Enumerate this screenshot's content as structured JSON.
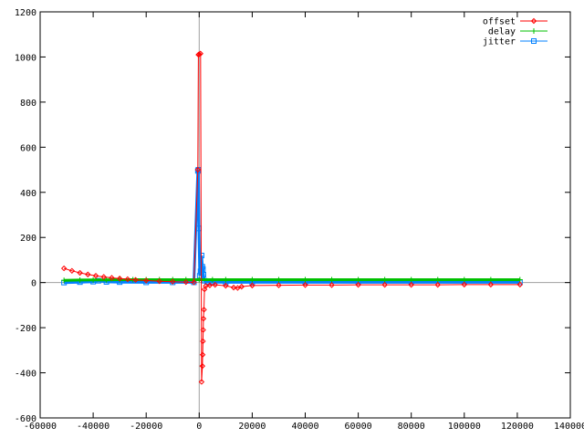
{
  "chart_data": {
    "type": "line",
    "title": "",
    "xlabel": "",
    "ylabel": "",
    "xlim": [
      -60000,
      140000
    ],
    "ylim": [
      -600,
      1200
    ],
    "x_ticks": [
      -60000,
      -40000,
      -20000,
      0,
      20000,
      40000,
      60000,
      80000,
      100000,
      120000,
      140000
    ],
    "y_ticks": [
      -600,
      -400,
      -200,
      0,
      200,
      400,
      600,
      800,
      1000,
      1200
    ],
    "x_tick_labels": [
      "-60000",
      "-40000",
      "-20000",
      "0",
      "20000",
      "40000",
      "60000",
      "80000",
      "100000",
      "120000",
      "140000"
    ],
    "y_tick_labels": [
      "-600",
      "-400",
      "-200",
      "0",
      "200",
      "400",
      "600",
      "800",
      "1000",
      "1200"
    ],
    "grid": false,
    "zero_axes": true,
    "legend_position": "top-right",
    "series": [
      {
        "name": "offset",
        "color": "#ff0000",
        "marker": "diamond",
        "x": [
          -51000,
          -48000,
          -45000,
          -42000,
          -39000,
          -36000,
          -33000,
          -30000,
          -27000,
          -24000,
          -20000,
          -15000,
          -10000,
          -5000,
          -2000,
          -500,
          -300,
          0,
          500,
          900,
          1200,
          1300,
          1400,
          1500,
          1600,
          1800,
          2000,
          2500,
          4000,
          6000,
          10000,
          13000,
          14500,
          16000,
          20000,
          30000,
          40000,
          50000,
          60000,
          70000,
          80000,
          90000,
          100000,
          110000,
          121000
        ],
        "y": [
          63,
          52,
          43,
          36,
          30,
          25,
          21,
          18,
          15,
          12,
          9,
          6,
          4,
          2,
          1,
          500,
          1010,
          1012,
          1015,
          -440,
          -370,
          -320,
          -260,
          -210,
          -160,
          -120,
          -30,
          -15,
          -12,
          -10,
          -14,
          -22,
          -24,
          -18,
          -13,
          -12,
          -11,
          -11,
          -10,
          -10,
          -10,
          -10,
          -9,
          -9,
          -9
        ]
      },
      {
        "name": "delay",
        "color": "#00c000",
        "marker": "plus",
        "x": [
          -51000,
          -45000,
          -40000,
          -35000,
          -30000,
          -25000,
          -20000,
          -15000,
          -10000,
          -5000,
          0,
          5000,
          10000,
          20000,
          30000,
          40000,
          50000,
          60000,
          70000,
          80000,
          90000,
          100000,
          110000,
          121000
        ],
        "y": [
          10,
          11,
          12,
          12,
          13,
          13,
          13,
          13,
          13,
          13,
          13,
          13,
          13,
          13,
          13,
          13,
          13,
          13,
          13,
          13,
          13,
          13,
          13,
          13
        ]
      },
      {
        "name": "jitter",
        "color": "#0080ff",
        "marker": "square",
        "x": [
          -51000,
          -45000,
          -40000,
          -38000,
          -35000,
          -30000,
          -20000,
          -10000,
          -2000,
          -500,
          -300,
          -100,
          200,
          500,
          900,
          1200,
          1400,
          1600,
          2000,
          3000,
          5000,
          10000,
          20000,
          40000,
          60000,
          80000,
          100000,
          121000
        ],
        "y": [
          0,
          2,
          4,
          8,
          3,
          2,
          1,
          1,
          1,
          495,
          500,
          240,
          30,
          50,
          120,
          70,
          60,
          35,
          8,
          3,
          2,
          1,
          1,
          1,
          1,
          1,
          1,
          1
        ]
      }
    ]
  }
}
